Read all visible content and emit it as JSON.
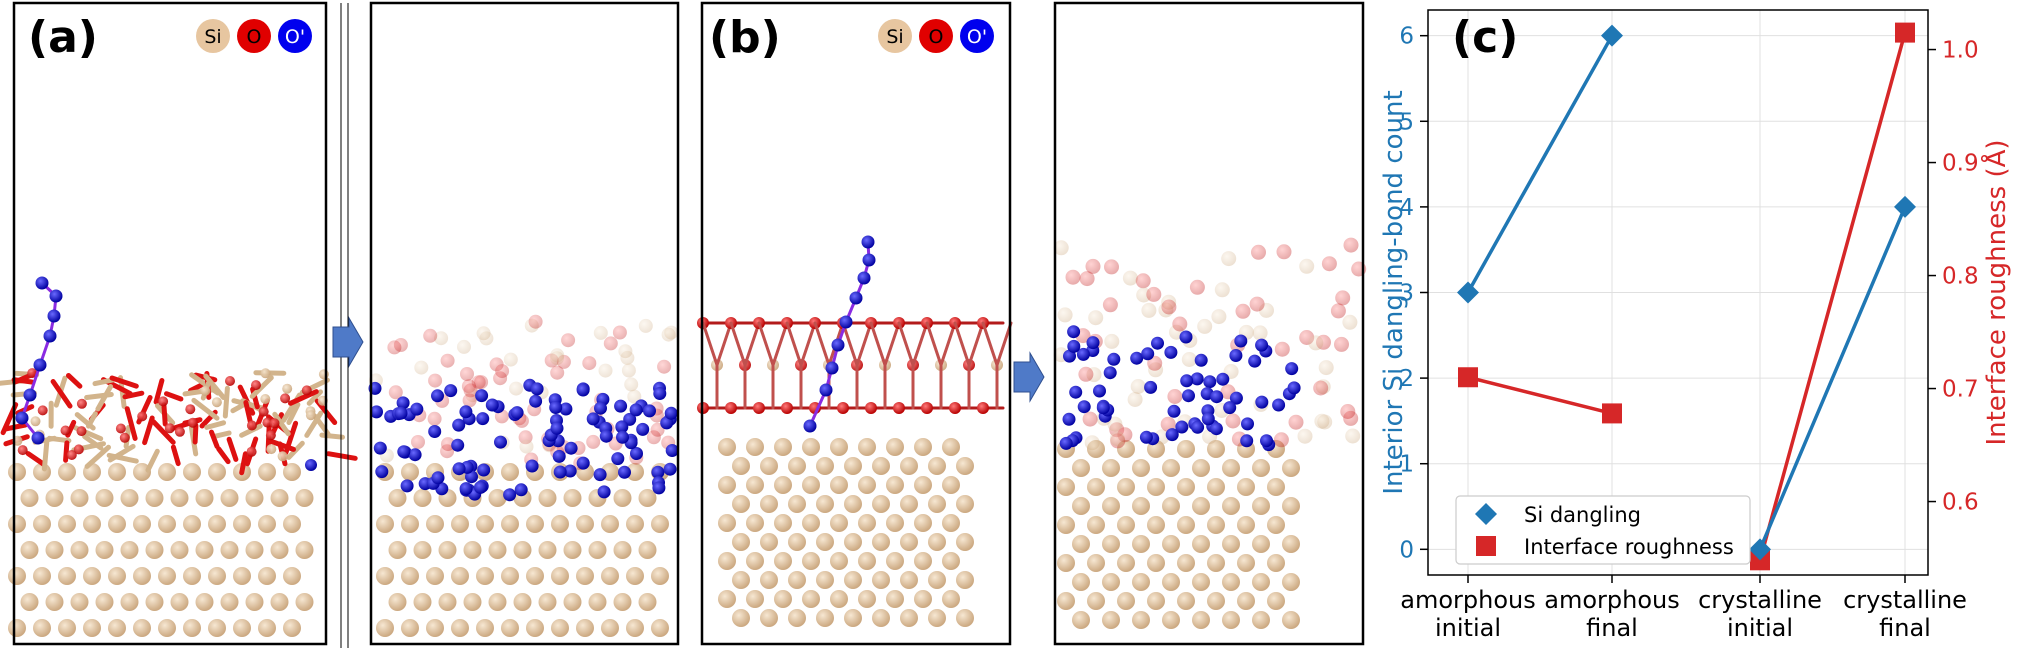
{
  "panels": {
    "a": {
      "label": "(a)"
    },
    "b": {
      "label": "(b)"
    },
    "c": {
      "label": "(c)"
    }
  },
  "legend": [
    {
      "label": "Si",
      "color": "#e7c6a0",
      "text_color": "#000000"
    },
    {
      "label": "O",
      "color": "#e00000",
      "text_color": "#000000"
    },
    {
      "label": "O'",
      "color": "#0000ee",
      "text_color": "#ffffff"
    }
  ],
  "colors": {
    "si": "#dcc19b",
    "o": "#dd1111",
    "o_prime": "#1010d0",
    "trajectory": "#8a2be2",
    "arrow": "#4f7ac8",
    "dangling": "#1f77b4",
    "roughness": "#d62728"
  },
  "chart_data": {
    "type": "line",
    "categories": [
      "amorphous\ninitial",
      "amorphous\nfinal",
      "crystalline\ninitial",
      "crystalline\nfinal"
    ],
    "x_tick_lines": [
      [
        "amorphous",
        "initial"
      ],
      [
        "amorphous",
        "final"
      ],
      [
        "crystalline",
        "initial"
      ],
      [
        "crystalline",
        "final"
      ]
    ],
    "ylabel": "Interior Si dangling-bond count",
    "y2label": "Interface roughness (Å)",
    "ylim": [
      -0.3,
      6.3
    ],
    "y2lim": [
      0.535,
      1.035
    ],
    "yticks": [
      0,
      1,
      2,
      3,
      4,
      5,
      6
    ],
    "y2ticks": [
      0.6,
      0.7,
      0.8,
      0.9,
      1.0
    ],
    "y2tick_labels": [
      "0.6",
      "0.7",
      "0.8",
      "0.9",
      "1.0"
    ],
    "grid": true,
    "legend_position": "lower-left",
    "series": [
      {
        "name": "Si dangling",
        "axis": "left",
        "marker": "diamond",
        "segments": [
          {
            "x": [
              0,
              1
            ],
            "y": [
              3,
              6
            ]
          },
          {
            "x": [
              2,
              3
            ],
            "y": [
              0,
              4
            ]
          }
        ]
      },
      {
        "name": "Interface roughness",
        "axis": "right",
        "marker": "square",
        "segments": [
          {
            "x": [
              0,
              1
            ],
            "y": [
              0.71,
              0.678
            ]
          },
          {
            "x": [
              2,
              3
            ],
            "y": [
              0.548,
              1.015
            ]
          }
        ]
      }
    ]
  }
}
